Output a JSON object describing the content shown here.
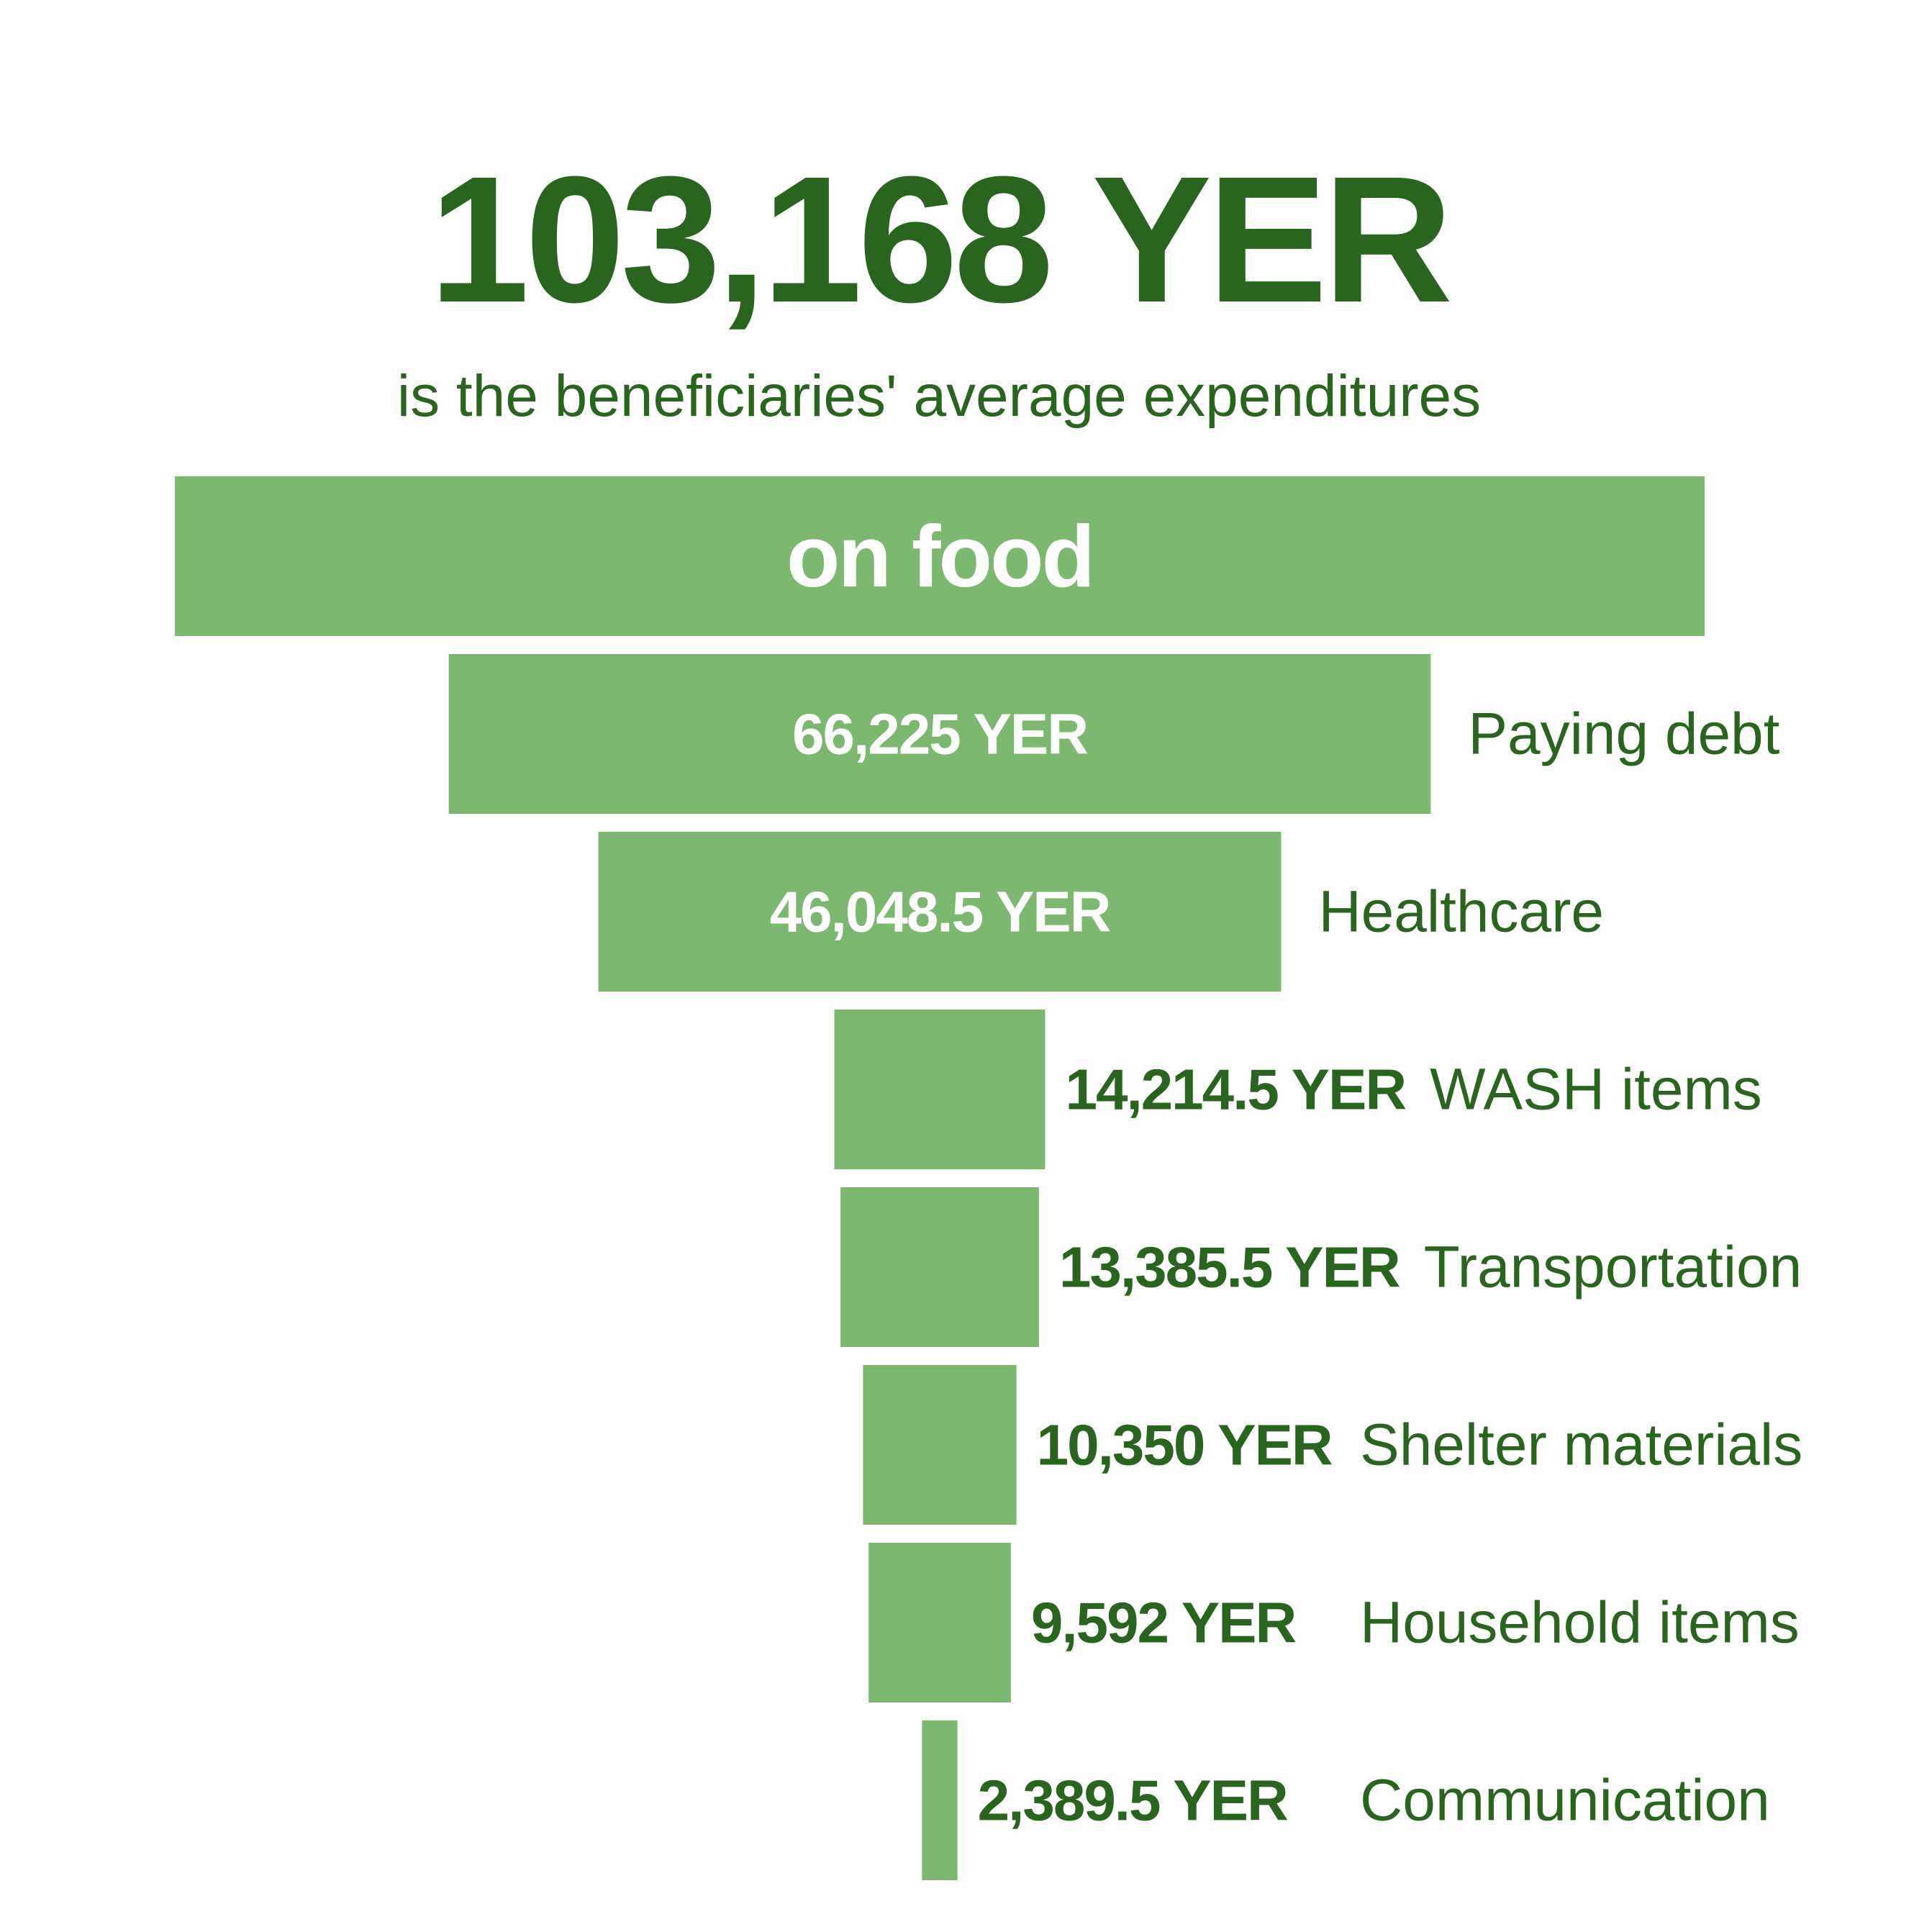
{
  "headline": {
    "value": "103,168 YER",
    "subtitle": "is the beneficiaries' average expenditures"
  },
  "colors": {
    "bar": "#7db870",
    "dark_green": "#2a6520",
    "inner_text": "#ffffff"
  },
  "chart_data": {
    "type": "bar",
    "orientation": "horizontal-centered-funnel",
    "unit": "YER",
    "categories": [
      "on food",
      "Paying debt",
      "Healthcare",
      "WASH items",
      "Transportation",
      "Shelter materials",
      "Household items",
      "Communication"
    ],
    "values": [
      103168,
      66225,
      46048.5,
      14214.5,
      13385.5,
      10350,
      9592,
      2389.5
    ],
    "value_labels": [
      "",
      "66,225 YER",
      "46,048.5 YER",
      "14,214.5 YER",
      "13,385.5 YER",
      "10,350 YER",
      "9,592 YER",
      "2,389.5 YER"
    ],
    "category_labels": [
      "on food",
      "Paying debt",
      "Healthcare",
      "WASH items",
      "Transportation",
      "Shelter materials",
      "Household items",
      "Communication"
    ]
  }
}
